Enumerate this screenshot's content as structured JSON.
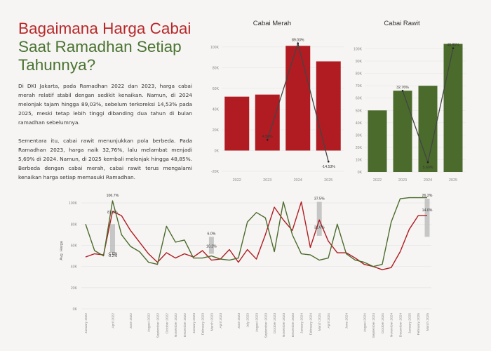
{
  "headline": {
    "line1": "Bagaimana Harga Cabai",
    "line2": "Saat Ramadhan Setiap",
    "line3": "Tahunnya?"
  },
  "paragraphs": {
    "p1": "Di DKI Jakarta, pada Ramadhan 2022 dan 2023, harga cabai merah relatif stabil dengan sedikit kenaikan. Namun, di 2024 melonjak tajam hingga 89,03%, sebelum terkoreksi 14,53% pada 2025, meski tetap lebih tinggi dibanding dua tahun di bulan ramadhan sebelumnya.",
    "p2": "Sementara itu, cabai rawit menunjukkan pola berbeda. Pada Ramadhan 2023, harga naik 32,76%, lalu melambat menjadi 5,69% di 2024. Namun, di 2025 kembali melonjak hingga 48,85%. Berbeda dengan cabai merah, cabai rawit terus mengalami kenaikan harga setiap memasuki Ramadhan."
  },
  "colors": {
    "merah": "#b01c22",
    "rawit": "#4b6b2c",
    "growth_line": "#444444",
    "highlight": "#bdbdbd"
  },
  "chart_data": [
    {
      "type": "bar",
      "title": "Cabai Merah",
      "categories": [
        "2022",
        "2023",
        "2024",
        "2025"
      ],
      "values": [
        52000,
        54000,
        101000,
        86000
      ],
      "growth": {
        "x": [
          "2023",
          "2024",
          "2025"
        ],
        "values": [
          4.56,
          89.03,
          -14.53
        ],
        "labels": [
          "4.56%",
          "89.03%",
          "-14.53%"
        ]
      },
      "ylim": [
        -20000,
        110000
      ],
      "yticks": [
        -20000,
        0,
        20000,
        40000,
        60000,
        80000,
        100000
      ],
      "ytick_labels": [
        "-20K",
        "0K",
        "20K",
        "40K",
        "60K",
        "80K",
        "100K"
      ]
    },
    {
      "type": "bar",
      "title": "Cabai Rawit",
      "categories": [
        "2022",
        "2023",
        "2024",
        "2025"
      ],
      "values": [
        50000,
        66000,
        70000,
        104000
      ],
      "growth": {
        "x": [
          "2023",
          "2024",
          "2025"
        ],
        "values": [
          32.76,
          5.69,
          48.85
        ],
        "labels": [
          "32.76%",
          "5.69%",
          "48.85%"
        ]
      },
      "ylim": [
        0,
        110000
      ],
      "yticks": [
        0,
        10000,
        20000,
        30000,
        40000,
        50000,
        60000,
        70000,
        80000,
        90000,
        100000
      ],
      "ytick_labels": [
        "0K",
        "10K",
        "20K",
        "30K",
        "40K",
        "50K",
        "60K",
        "70K",
        "80K",
        "90K",
        "100K"
      ]
    },
    {
      "type": "line",
      "ylabel": "Avg. Harga",
      "ylim": [
        0,
        110000
      ],
      "yticks": [
        0,
        20000,
        40000,
        60000,
        80000,
        100000
      ],
      "ytick_labels": [
        "0K",
        "20K",
        "40K",
        "60K",
        "80K",
        "100K"
      ],
      "x": [
        "January 2022",
        "February 2022",
        "March 2022",
        "April 2022",
        "May 2022",
        "June 2022",
        "July 2022",
        "August 2022",
        "September 2022",
        "October 2022",
        "November 2022",
        "December 2022",
        "January 2023",
        "February 2023",
        "March 2023",
        "April 2023",
        "May 2023",
        "June 2023",
        "July 2023",
        "August 2023",
        "September 2023",
        "October 2023",
        "November 2023",
        "December 2023",
        "January 2024",
        "February 2024",
        "March 2024",
        "April 2024",
        "May 2024",
        "June 2024",
        "July 2024",
        "August 2024",
        "September 2024",
        "October 2024",
        "November 2024",
        "December 2024",
        "January 2025",
        "February 2025",
        "March 2025"
      ],
      "x_labels": [
        "January 2022",
        "",
        "",
        "April 2022",
        "",
        "June 2022",
        "",
        "August 2022",
        "September 2022",
        "October 2022",
        "November 2022",
        "December 2022",
        "January 2023",
        "February 2023",
        "March 2023",
        "April 2023",
        "",
        "June 2023",
        "July 2023",
        "August 2023",
        "September 2023",
        "October 2023",
        "November 2023",
        "December 2023",
        "January 2024",
        "February 2024",
        "March 2024",
        "April 2024",
        "",
        "June 2024",
        "",
        "August 2024",
        "September 2024",
        "October 2024",
        "November 2024",
        "December 2024",
        "January 2025",
        "February 2025",
        "March 2025"
      ],
      "series": [
        {
          "key": "merah",
          "values": [
            49000,
            52000,
            51000,
            92000,
            88000,
            74000,
            63000,
            52000,
            44000,
            53000,
            48000,
            52000,
            49000,
            55000,
            46000,
            47000,
            56000,
            44000,
            56000,
            47000,
            70000,
            96000,
            84000,
            74000,
            101000,
            58000,
            84000,
            64000,
            53000,
            53000,
            48000,
            42000,
            40000,
            37000,
            39000,
            54000,
            75000,
            88000,
            88000
          ]
        },
        {
          "key": "rawit",
          "values": [
            80000,
            55000,
            50000,
            102000,
            70000,
            59000,
            54000,
            44000,
            42000,
            78000,
            63000,
            65000,
            48000,
            48000,
            50000,
            47000,
            46000,
            48000,
            82000,
            91000,
            86000,
            54000,
            101000,
            70000,
            52000,
            51000,
            46000,
            48000,
            80000,
            52000,
            46000,
            44000,
            40000,
            42000,
            82000,
            104000,
            105000,
            105000,
            105000
          ]
        }
      ],
      "highlights": [
        {
          "x": "April 2022",
          "from": 53000,
          "to": 80000
        },
        {
          "x": "March 2023",
          "from": 52000,
          "to": 68000
        },
        {
          "x": "March 2024",
          "from": 69000,
          "to": 101000
        },
        {
          "x": "March 2025",
          "from": 68000,
          "to": 104000
        }
      ],
      "annotations": [
        {
          "x": "April 2022",
          "y": 106000,
          "text": "106.7%"
        },
        {
          "x": "April 2022",
          "y": 90000,
          "text": "81.3%"
        },
        {
          "x": "April 2022",
          "y": 51000,
          "text": "-1.6%"
        },
        {
          "x": "April 2022",
          "y": 49000,
          "text": "-9.2%"
        },
        {
          "x": "March 2023",
          "y": 70000,
          "text": "6.0%"
        },
        {
          "x": "March 2023",
          "y": 58000,
          "text": "10.2%"
        },
        {
          "x": "March 2024",
          "y": 103000,
          "text": "37.5%"
        },
        {
          "x": "March 2024",
          "y": 76000,
          "text": "31.6%"
        },
        {
          "x": "March 2025",
          "y": 106000,
          "text": "26.2%"
        },
        {
          "x": "March 2025",
          "y": 92000,
          "text": "14.0%"
        }
      ]
    }
  ]
}
